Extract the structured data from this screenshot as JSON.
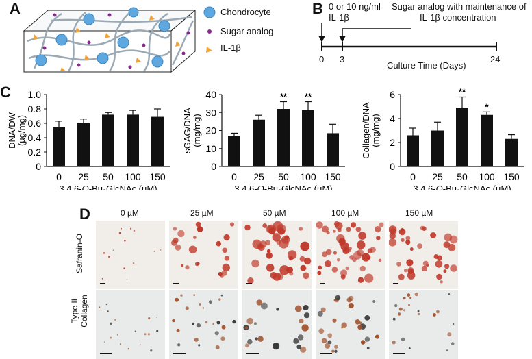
{
  "panels": {
    "A": "A",
    "B": "B",
    "C": "C",
    "D": "D"
  },
  "legend_a": [
    "Chondrocyte",
    "Sugar analog",
    "IL-1β"
  ],
  "timeline": {
    "label_0_line1": "0 or 10 ng/ml",
    "label_0_line2": "IL-1β",
    "label_3_line1": "Sugar analog with maintenance of",
    "label_3_line2": "IL-1β concentration",
    "ticks": [
      "0",
      "3",
      "24"
    ],
    "axis_label": "Culture Time (Days)"
  },
  "chart_data": [
    {
      "type": "bar",
      "categories": [
        "0",
        "25",
        "50",
        "100",
        "150"
      ],
      "values": [
        0.55,
        0.6,
        0.72,
        0.72,
        0.69
      ],
      "errors": [
        0.08,
        0.06,
        0.03,
        0.06,
        0.11
      ],
      "significance": [
        "",
        "",
        "",
        "",
        ""
      ],
      "ylabel_line1": "DNA/DW",
      "ylabel_line2": "(µg/mg)",
      "xlabel": "3,4,6-O-Bu3GlcNAc (µM)",
      "ylim": [
        0,
        1.0
      ],
      "yticks": [
        "0",
        "0.2",
        "0.4",
        "0.6",
        "0.8",
        "1.0"
      ]
    },
    {
      "type": "bar",
      "categories": [
        "0",
        "25",
        "50",
        "100",
        "150"
      ],
      "values": [
        17,
        26,
        32,
        31.5,
        18.5
      ],
      "errors": [
        1.5,
        2.5,
        4,
        4.5,
        5
      ],
      "significance": [
        "",
        "",
        "**",
        "**",
        ""
      ],
      "ylabel_line1": "sGAG/DNA",
      "ylabel_line2": "(mg/mg)",
      "xlabel": "3,4,6-O-Bu3GlcNAc (µM)",
      "ylim": [
        0,
        40
      ],
      "yticks": [
        "0",
        "10",
        "20",
        "30",
        "40"
      ]
    },
    {
      "type": "bar",
      "categories": [
        "0",
        "25",
        "50",
        "100",
        "150"
      ],
      "values": [
        2.6,
        3.0,
        4.9,
        4.3,
        2.3
      ],
      "errors": [
        0.6,
        0.7,
        0.9,
        0.25,
        0.35
      ],
      "significance": [
        "",
        "",
        "**",
        "*",
        ""
      ],
      "ylabel_line1": "Collagen/DNA",
      "ylabel_line2": "(mg/mg)",
      "xlabel": "3,4,6-O-Bu3GlcNAc (µM)",
      "ylim": [
        0,
        6
      ],
      "yticks": [
        "0",
        "2",
        "4",
        "6"
      ]
    }
  ],
  "micrographs": {
    "columns": [
      "0 µM",
      "25 µM",
      "50 µM",
      "100 µM",
      "150 µM"
    ],
    "row1_label": "Safranin-O",
    "row2_label_line1": "Type II",
    "row2_label_line2": "Collagen",
    "stain_color": "#c0392b"
  },
  "colors": {
    "bar": "#111111",
    "chondrocyte": "#5fa8df",
    "sugar": "#8a2a8f",
    "il1b": "#f2a33a"
  }
}
